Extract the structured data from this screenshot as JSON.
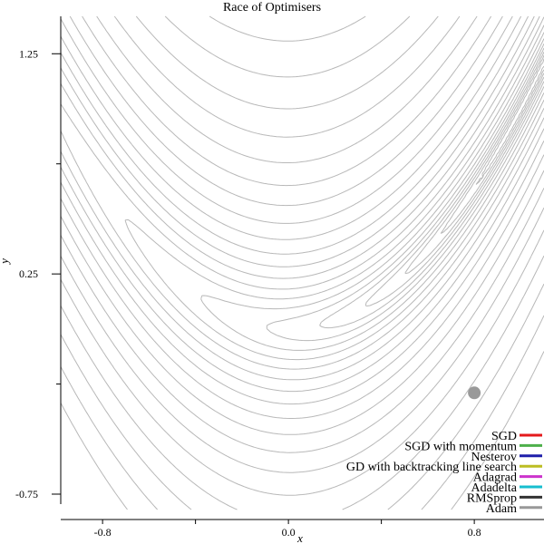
{
  "chart_data": {
    "type": "line",
    "title": "Race of Optimisers",
    "xlabel": "x",
    "ylabel": "y",
    "xlim": [
      -0.98,
      1.1
    ],
    "ylim": [
      -0.82,
      1.42
    ],
    "x_ticks": [
      -0.8,
      0.0,
      0.8
    ],
    "x_tick_labels": [
      "-0.8",
      "0.0",
      "0.8"
    ],
    "y_ticks": [
      -0.75,
      0.25,
      1.25
    ],
    "y_tick_labels": [
      "-0.75",
      "0.25",
      "1.25"
    ],
    "contour_function": "(1-x)^2 + 100(y-x^2)^2",
    "contour_levels": [
      0.04,
      0.12,
      0.25,
      0.45,
      0.75,
      1.2,
      1.9,
      2.9,
      4.3,
      6.3,
      9,
      12.6,
      17.5,
      24,
      32.5,
      43.5,
      58,
      77,
      101,
      132,
      172
    ],
    "contour_color": "#b8b8b8",
    "marker": {
      "x": 0.8,
      "y": -0.29,
      "color": "#999999"
    },
    "legend_position": "bottom-right",
    "series": [
      {
        "name": "SGD",
        "color": "#e41a1c"
      },
      {
        "name": "SGD with momentum",
        "color": "#4daf4a"
      },
      {
        "name": "Nesterov",
        "color": "#1f1faa"
      },
      {
        "name": "GD with backtracking line search",
        "color": "#bcbd22"
      },
      {
        "name": "Adagrad",
        "color": "#cc33cc"
      },
      {
        "name": "Adadelta",
        "color": "#17becf"
      },
      {
        "name": "RMSprop",
        "color": "#333333"
      },
      {
        "name": "Adam",
        "color": "#999999"
      }
    ]
  }
}
